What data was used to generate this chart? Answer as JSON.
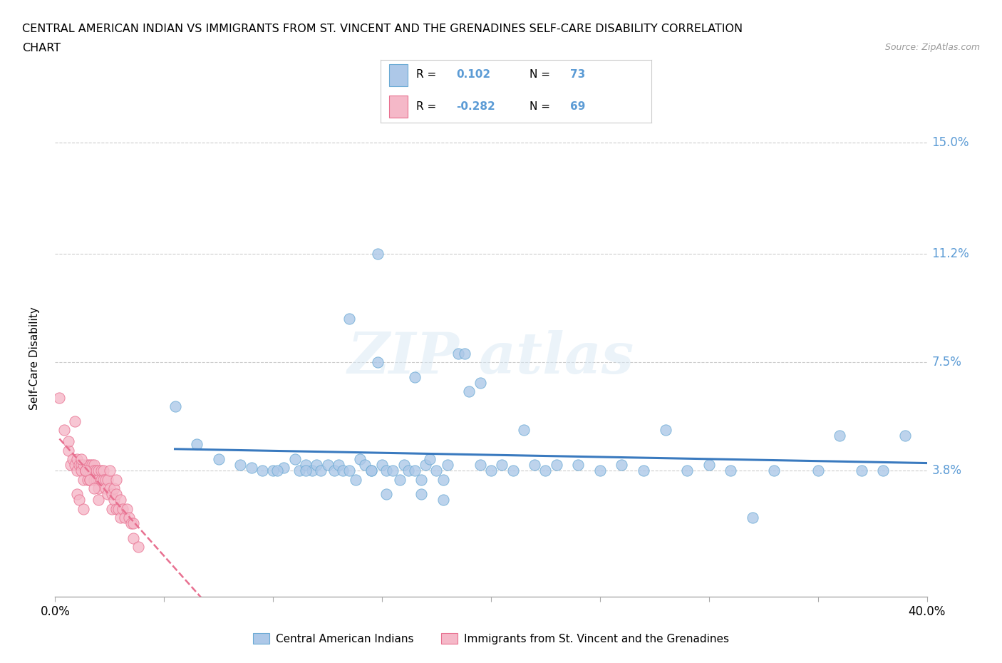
{
  "title_line1": "CENTRAL AMERICAN INDIAN VS IMMIGRANTS FROM ST. VINCENT AND THE GRENADINES SELF-CARE DISABILITY CORRELATION",
  "title_line2": "CHART",
  "source_text": "Source: ZipAtlas.com",
  "ylabel": "Self-Care Disability",
  "xlim": [
    0.0,
    0.4
  ],
  "ylim": [
    -0.005,
    0.158
  ],
  "ytick_vals": [
    0.038,
    0.075,
    0.112,
    0.15
  ],
  "ytick_labels": [
    "3.8%",
    "7.5%",
    "11.2%",
    "15.0%"
  ],
  "xtick_vals": [
    0.0,
    0.05,
    0.1,
    0.15,
    0.2,
    0.25,
    0.3,
    0.35,
    0.4
  ],
  "xtick_labels": [
    "0.0%",
    "",
    "",
    "",
    "",
    "",
    "",
    "",
    "40.0%"
  ],
  "blue_color": "#adc8e8",
  "pink_color": "#f5b8c8",
  "blue_edge_color": "#6aaad4",
  "pink_edge_color": "#e87090",
  "blue_trend_color": "#3a7abf",
  "pink_trend_color": "#e87090",
  "legend_label_blue": "Central American Indians",
  "legend_label_pink": "Immigrants from St. Vincent and the Grenadines",
  "grid_color": "#cccccc",
  "background_color": "#ffffff",
  "ytick_color": "#5b9bd5",
  "blue_R": "0.102",
  "blue_N": "73",
  "pink_R": "-0.282",
  "pink_N": "69",
  "blue_x": [
    0.055,
    0.065,
    0.075,
    0.085,
    0.09,
    0.095,
    0.1,
    0.105,
    0.11,
    0.112,
    0.115,
    0.118,
    0.12,
    0.122,
    0.125,
    0.128,
    0.13,
    0.132,
    0.135,
    0.138,
    0.14,
    0.142,
    0.145,
    0.148,
    0.15,
    0.152,
    0.155,
    0.158,
    0.16,
    0.162,
    0.165,
    0.168,
    0.17,
    0.172,
    0.175,
    0.178,
    0.18,
    0.185,
    0.19,
    0.195,
    0.2,
    0.205,
    0.21,
    0.215,
    0.22,
    0.225,
    0.23,
    0.24,
    0.25,
    0.26,
    0.27,
    0.28,
    0.29,
    0.3,
    0.31,
    0.32,
    0.33,
    0.35,
    0.36,
    0.37,
    0.38,
    0.39,
    0.135,
    0.148,
    0.165,
    0.195,
    0.145,
    0.152,
    0.168,
    0.178,
    0.188,
    0.102,
    0.115
  ],
  "blue_y": [
    0.06,
    0.047,
    0.042,
    0.04,
    0.039,
    0.038,
    0.038,
    0.039,
    0.042,
    0.038,
    0.04,
    0.038,
    0.04,
    0.038,
    0.04,
    0.038,
    0.04,
    0.038,
    0.038,
    0.035,
    0.042,
    0.04,
    0.038,
    0.112,
    0.04,
    0.038,
    0.038,
    0.035,
    0.04,
    0.038,
    0.038,
    0.035,
    0.04,
    0.042,
    0.038,
    0.035,
    0.04,
    0.078,
    0.065,
    0.04,
    0.038,
    0.04,
    0.038,
    0.052,
    0.04,
    0.038,
    0.04,
    0.04,
    0.038,
    0.04,
    0.038,
    0.052,
    0.038,
    0.04,
    0.038,
    0.022,
    0.038,
    0.038,
    0.05,
    0.038,
    0.038,
    0.05,
    0.09,
    0.075,
    0.07,
    0.068,
    0.038,
    0.03,
    0.03,
    0.028,
    0.078,
    0.038,
    0.038
  ],
  "pink_x": [
    0.002,
    0.004,
    0.006,
    0.007,
    0.008,
    0.009,
    0.01,
    0.01,
    0.011,
    0.012,
    0.012,
    0.013,
    0.013,
    0.014,
    0.014,
    0.015,
    0.015,
    0.015,
    0.016,
    0.016,
    0.016,
    0.017,
    0.017,
    0.018,
    0.018,
    0.018,
    0.019,
    0.019,
    0.02,
    0.02,
    0.02,
    0.02,
    0.021,
    0.021,
    0.022,
    0.022,
    0.023,
    0.023,
    0.024,
    0.024,
    0.025,
    0.025,
    0.026,
    0.026,
    0.027,
    0.027,
    0.028,
    0.028,
    0.028,
    0.029,
    0.03,
    0.03,
    0.031,
    0.032,
    0.033,
    0.034,
    0.035,
    0.036,
    0.036,
    0.038,
    0.006,
    0.009,
    0.012,
    0.014,
    0.016,
    0.018,
    0.01,
    0.011,
    0.013
  ],
  "pink_y": [
    0.063,
    0.052,
    0.045,
    0.04,
    0.042,
    0.04,
    0.042,
    0.038,
    0.04,
    0.04,
    0.038,
    0.04,
    0.035,
    0.038,
    0.038,
    0.04,
    0.038,
    0.035,
    0.04,
    0.038,
    0.035,
    0.04,
    0.038,
    0.04,
    0.038,
    0.035,
    0.038,
    0.035,
    0.038,
    0.035,
    0.032,
    0.028,
    0.035,
    0.038,
    0.038,
    0.035,
    0.035,
    0.032,
    0.035,
    0.03,
    0.038,
    0.032,
    0.03,
    0.025,
    0.032,
    0.028,
    0.035,
    0.03,
    0.025,
    0.025,
    0.028,
    0.022,
    0.025,
    0.022,
    0.025,
    0.022,
    0.02,
    0.02,
    0.015,
    0.012,
    0.048,
    0.055,
    0.042,
    0.038,
    0.035,
    0.032,
    0.03,
    0.028,
    0.025
  ]
}
